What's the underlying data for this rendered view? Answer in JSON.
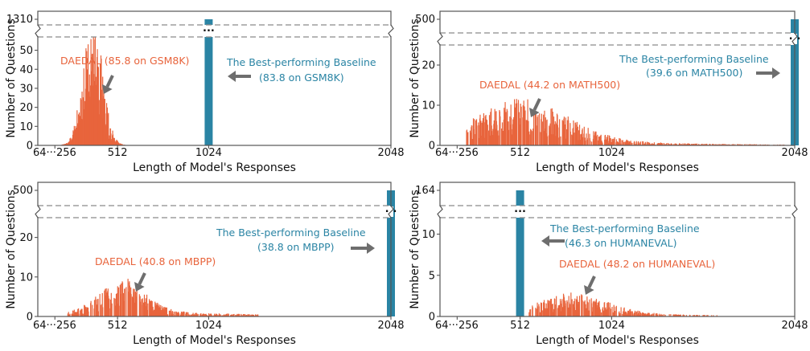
{
  "colors": {
    "daedal": "#e8643c",
    "baseline": "#2a84a4",
    "frame": "#555555",
    "dash": "#8a8a8a",
    "arrow": "#6e6e6e",
    "text": "#111111"
  },
  "icons": {
    "arrow": "arrow-icon",
    "axis_break": "axis-break-icon",
    "ellipsis": "ellipsis-icon"
  },
  "chart_data": [
    {
      "type": "bar",
      "xlabel": "Length of Model's Responses",
      "ylabel": "Number of Questions",
      "xlim": [
        64,
        2048
      ],
      "x_ticks": [
        "64···256",
        "512",
        "1024",
        "2048"
      ],
      "x_tick_values": [
        160,
        512,
        1024,
        2048
      ],
      "y_ticks": [
        "0",
        "10",
        "20",
        "30",
        "40",
        "50"
      ],
      "y_break_label": "1310",
      "lower_ylim": [
        0,
        57
      ],
      "series": [
        {
          "name": "DAEDAL (85.8 on GSM8K)",
          "distribution": {
            "center": 370,
            "spread": 55,
            "peak": 42,
            "range": [
              196,
              640
            ]
          }
        },
        {
          "name": "The Best-performing Baseline (83.8 on GSM8K)",
          "x": 1024,
          "value": 1310
        }
      ],
      "annotations": [
        {
          "text": "DAEDAL (85.8 on GSM8K)",
          "series": "daedal"
        },
        {
          "text": "The Best-performing Baseline",
          "series": "baseline"
        },
        {
          "text": "(83.8 on GSM8K)",
          "series": "baseline"
        }
      ]
    },
    {
      "type": "bar",
      "xlabel": "Length of Model's Responses",
      "ylabel": "Number of Questions",
      "xlim": [
        64,
        2048
      ],
      "x_ticks": [
        "64···256",
        "512",
        "1024",
        "2048"
      ],
      "x_tick_values": [
        160,
        512,
        1024,
        2048
      ],
      "y_ticks": [
        "0",
        "10",
        "20"
      ],
      "y_break_label": "500",
      "lower_ylim": [
        0,
        25
      ],
      "series": [
        {
          "name": "DAEDAL (44.2 on MATH500)",
          "distribution": {
            "center": 520,
            "spread": 250,
            "peak": 6,
            "range": [
              210,
              2000
            ]
          }
        },
        {
          "name": "The Best-performing Baseline (39.6 on MATH500)",
          "x": 2048,
          "value": 500
        }
      ],
      "annotations": [
        {
          "text": "DAEDAL (44.2 on MATH500)",
          "series": "daedal"
        },
        {
          "text": "The Best-performing Baseline",
          "series": "baseline"
        },
        {
          "text": "(39.6 on MATH500)",
          "series": "baseline"
        }
      ]
    },
    {
      "type": "bar",
      "xlabel": "Length of Model's Responses",
      "ylabel": "Number of Questions",
      "xlim": [
        64,
        2048
      ],
      "x_ticks": [
        "64···256",
        "512",
        "1024",
        "2048"
      ],
      "x_tick_values": [
        160,
        512,
        1024,
        2048
      ],
      "y_ticks": [
        "0",
        "10",
        "20"
      ],
      "y_break_label": "500",
      "lower_ylim": [
        0,
        25
      ],
      "series": [
        {
          "name": "DAEDAL (40.8 on MBPP)",
          "distribution": {
            "center": 540,
            "spread": 120,
            "peak": 5,
            "range": [
              230,
              1300
            ]
          }
        },
        {
          "name": "The Best-performing Baseline (38.8 on MBPP)",
          "x": 2048,
          "value": 500
        }
      ],
      "annotations": [
        {
          "text": "DAEDAL (40.8 on MBPP)",
          "series": "daedal"
        },
        {
          "text": "The Best-performing Baseline",
          "series": "baseline"
        },
        {
          "text": "(38.8 on MBPP)",
          "series": "baseline"
        }
      ]
    },
    {
      "type": "bar",
      "xlabel": "Length of Model's Responses",
      "ylabel": "Number of Questions",
      "xlim": [
        64,
        2048
      ],
      "x_ticks": [
        "64···256",
        "512",
        "1024",
        "2048"
      ],
      "x_tick_values": [
        160,
        512,
        1024,
        2048
      ],
      "y_ticks": [
        "0",
        "5",
        "10"
      ],
      "y_break_label": "164",
      "lower_ylim": [
        0,
        12
      ],
      "series": [
        {
          "name": "DAEDAL (48.2 on HUMANEVAL)",
          "distribution": {
            "center": 820,
            "spread": 180,
            "peak": 2.2,
            "range": [
              560,
              2020
            ]
          }
        },
        {
          "name": "The Best-performing Baseline (46.3 on HUMANEVAL)",
          "x": 512,
          "value": 164
        }
      ],
      "annotations": [
        {
          "text": "DAEDAL (48.2 on HUMANEVAL)",
          "series": "daedal"
        },
        {
          "text": "The Best-performing Baseline",
          "series": "baseline"
        },
        {
          "text": "(46.3 on HUMANEVAL)",
          "series": "baseline"
        }
      ]
    }
  ]
}
